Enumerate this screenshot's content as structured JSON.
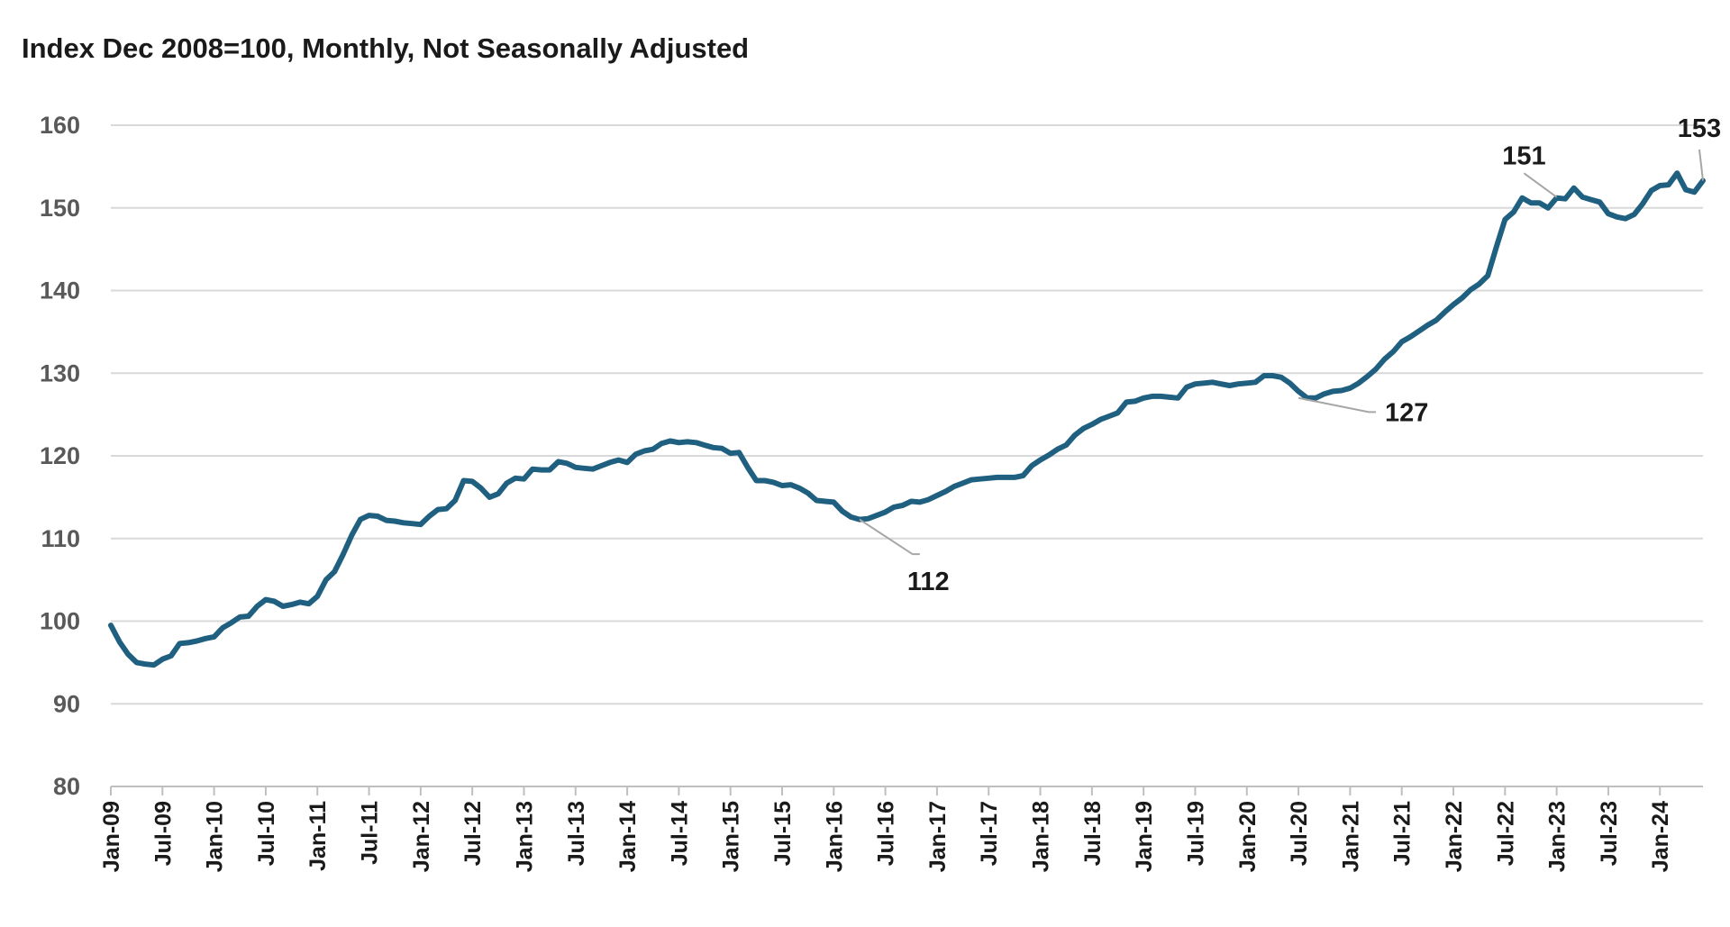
{
  "chart_data": {
    "type": "line",
    "title": "Index Dec 2008=100, Monthly, Not Seasonally Adjusted",
    "xlabel": "",
    "ylabel": "",
    "ylim": [
      80,
      160
    ],
    "yticks": [
      80,
      90,
      100,
      110,
      120,
      130,
      140,
      150,
      160
    ],
    "grid": true,
    "line_color": "#1f5f7f",
    "grid_color": "#d9d9d9",
    "x_tick_labels": [
      "Jan-09",
      "Jul-09",
      "Jan-10",
      "Jul-10",
      "Jan-11",
      "Jul-11",
      "Jan-12",
      "Jul-12",
      "Jan-13",
      "Jul-13",
      "Jan-14",
      "Jul-14",
      "Jan-15",
      "Jul-15",
      "Jan-16",
      "Jul-16",
      "Jan-17",
      "Jul-17",
      "Jan-18",
      "Jul-18",
      "Jan-19",
      "Jul-19",
      "Jan-20",
      "Jul-20",
      "Jan-21",
      "Jul-21",
      "Jan-22",
      "Jul-22",
      "Jan-23",
      "Jul-23",
      "Jan-24"
    ],
    "x_start": "Jan-09",
    "series": [
      {
        "values": [
          99.5,
          97.5,
          96,
          95,
          94.8,
          94.7,
          95.4,
          95.8,
          97.3,
          97.4,
          97.6,
          97.9,
          98.1,
          99.2,
          99.8,
          100.5,
          100.6,
          101.8,
          102.6,
          102.4,
          101.8,
          102,
          102.3,
          102.1,
          103,
          105,
          106,
          108.1,
          110.4,
          112.3,
          112.8,
          112.7,
          112.2,
          112.1,
          111.9,
          111.8,
          111.7,
          112.7,
          113.5,
          113.6,
          114.6,
          117,
          116.9,
          116.1,
          115,
          115.4,
          116.7,
          117.3,
          117.2,
          118.4,
          118.3,
          118.3,
          119.3,
          119.1,
          118.6,
          118.5,
          118.4,
          118.8,
          119.2,
          119.5,
          119.2,
          120.2,
          120.6,
          120.8,
          121.5,
          121.8,
          121.6,
          121.7,
          121.6,
          121.3,
          121,
          120.9,
          120.3,
          120.4,
          118.6,
          117,
          117,
          116.8,
          116.4,
          116.5,
          116.1,
          115.5,
          114.6,
          114.5,
          114.4,
          113.3,
          112.6,
          112.3,
          112.4,
          112.8,
          113.2,
          113.8,
          114,
          114.5,
          114.4,
          114.7,
          115.2,
          115.7,
          116.3,
          116.7,
          117.1,
          117.2,
          117.3,
          117.4,
          117.4,
          117.4,
          117.6,
          118.8,
          119.5,
          120.1,
          120.8,
          121.3,
          122.5,
          123.3,
          123.8,
          124.4,
          124.8,
          125.2,
          126.5,
          126.6,
          127,
          127.2,
          127.2,
          127.1,
          127,
          128.3,
          128.7,
          128.8,
          128.9,
          128.7,
          128.5,
          128.7,
          128.8,
          128.9,
          129.7,
          129.7,
          129.5,
          128.8,
          127.8,
          127,
          127,
          127.5,
          127.8,
          127.9,
          128.2,
          128.8,
          129.6,
          130.5,
          131.7,
          132.6,
          133.8,
          134.4,
          135.1,
          135.8,
          136.4,
          137.4,
          138.3,
          139.1,
          140.1,
          140.8,
          141.8,
          145.3,
          148.6,
          149.5,
          151.2,
          150.6,
          150.6,
          150,
          151.2,
          151.1,
          152.4,
          151.3,
          151,
          150.7,
          149.3,
          148.9,
          148.7,
          149.2,
          150.5,
          152.1,
          152.7,
          152.8,
          154.2,
          152.2,
          151.9,
          153.3
        ]
      }
    ],
    "annotations": [
      {
        "label": "112",
        "x": "Apr-16",
        "y": 112.3,
        "label_x": "Nov-16",
        "label_y": 108.1
      },
      {
        "label": "127",
        "x": "Jul-20",
        "y": 127.0,
        "label_x": "Apr-21",
        "label_y": 125.3
      },
      {
        "label": "151",
        "x": "Jan-23",
        "y": 151.3,
        "label_x": "Sep-22",
        "label_y": 155.5
      },
      {
        "label": "153",
        "x": "Jun-24",
        "y": 153.3,
        "label_x": "Jun-24",
        "label_y": 158.8
      }
    ]
  }
}
